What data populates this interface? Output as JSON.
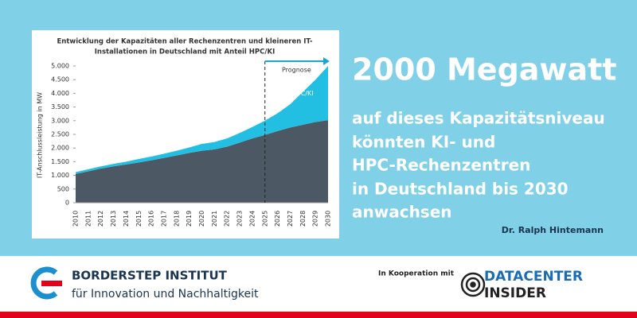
{
  "chart_data": {
    "type": "stacked_area",
    "title": [
      "Entwicklung der Kapazitäten aller Rechenzentren und kleineren IT-",
      "Installationen in Deutschland mit Anteil HPC/KI"
    ],
    "ylabel": "IT-Anschlussleistung in MW",
    "categories": [
      "2010",
      "2011",
      "2012",
      "2013",
      "2014",
      "2015",
      "2016",
      "2017",
      "2018",
      "2019",
      "2020",
      "2021",
      "2022",
      "2023",
      "2024",
      "2025",
      "2026",
      "2027",
      "2028",
      "2029",
      "2030"
    ],
    "series": [
      {
        "color": "#4c5864",
        "values": [
          1050,
          1150,
          1250,
          1330,
          1400,
          1470,
          1550,
          1640,
          1730,
          1820,
          1900,
          1950,
          2050,
          2200,
          2350,
          2480,
          2620,
          2750,
          2850,
          2950,
          3020
        ]
      },
      {
        "name": "HPC/KI",
        "color": "#22bfe3",
        "values": [
          70,
          75,
          80,
          90,
          100,
          130,
          140,
          150,
          170,
          200,
          250,
          270,
          300,
          350,
          420,
          520,
          650,
          850,
          1200,
          1550,
          1980
        ]
      }
    ],
    "ylim": [
      0,
      5000
    ],
    "yticks": [
      {
        "value": 0,
        "label": "0"
      },
      {
        "value": 500,
        "label": "500"
      },
      {
        "value": 1000,
        "label": "1.000"
      },
      {
        "value": 1500,
        "label": "1.500"
      },
      {
        "value": 2000,
        "label": "2.000"
      },
      {
        "value": 2500,
        "label": "2.500"
      },
      {
        "value": 3000,
        "label": "3.000"
      },
      {
        "value": 3500,
        "label": "3.500"
      },
      {
        "value": 4000,
        "label": "4.000"
      },
      {
        "value": 4500,
        "label": "4.500"
      },
      {
        "value": 5000,
        "label": "5.000"
      }
    ],
    "annotation": {
      "text": "Prognose",
      "from": "2025"
    }
  },
  "headline": "2000 Megawatt",
  "body_lines": [
    "auf dieses Kapazitätsniveau",
    "könnten KI- und",
    "HPC-Rechenzentren",
    "in Deutschland bis 2030",
    "anwachsen"
  ],
  "author": "Dr. Ralph Hintemann",
  "footer": {
    "institute": "BORDERSTEP INSTITUT",
    "tagline": "für Innovation und Nachhaltigkeit",
    "cooperation": "In Kooperation mit",
    "partner": [
      "DATACENTER",
      "INSIDER"
    ]
  }
}
